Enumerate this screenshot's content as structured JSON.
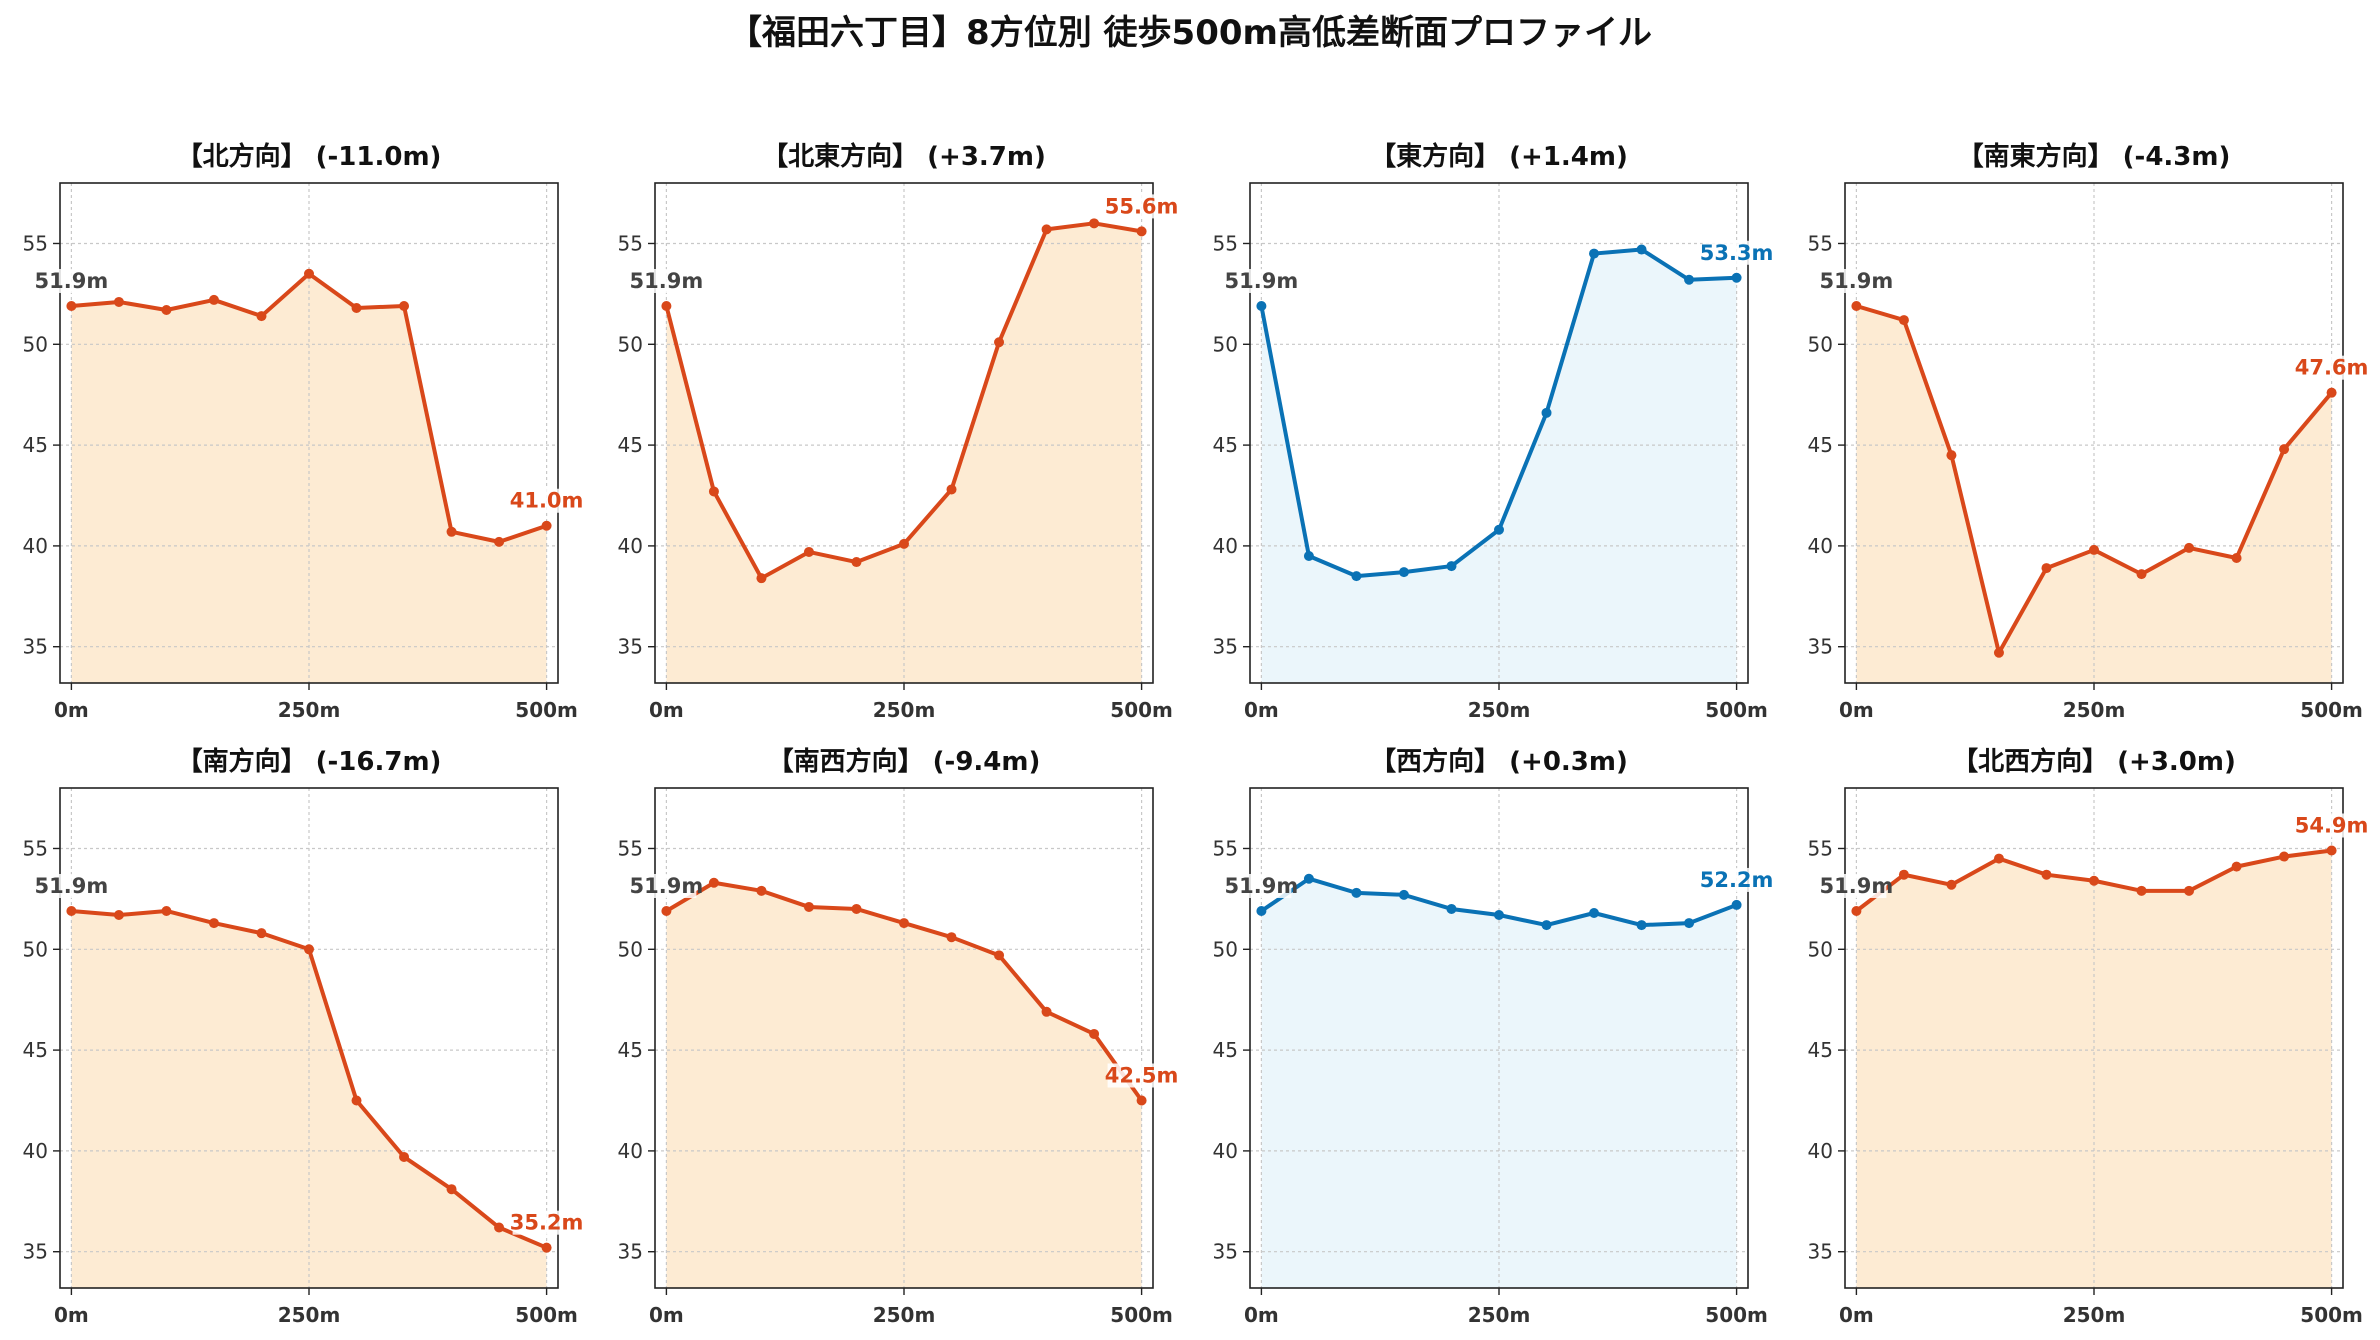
{
  "title": "【福田六丁目】8方位別 徒歩500m高低差断面プロファイル",
  "colors": {
    "down_line": "#d9481a",
    "down_fill": "#fdebd3",
    "up_line": "#0a72b5",
    "up_fill": "#ebf6fb",
    "grid": "#c8c8c8",
    "axis": "#222222"
  },
  "chart_data": [
    {
      "type": "area",
      "title": "【北方向】 (-11.0m)",
      "color_scheme": "down",
      "x": [
        0,
        50,
        100,
        150,
        200,
        250,
        300,
        350,
        400,
        450,
        500
      ],
      "values": [
        51.9,
        52.1,
        51.7,
        52.2,
        51.4,
        53.5,
        51.8,
        51.9,
        40.7,
        40.2,
        41.0
      ],
      "start_label": "51.9m",
      "end_label": "41.0m",
      "xticks": [
        "0m",
        "250m",
        "500m"
      ],
      "yticks": [
        "35",
        "40",
        "45",
        "50",
        "55"
      ],
      "xlim": [
        -12,
        512
      ],
      "ylim": [
        33.2,
        58
      ],
      "grid": true
    },
    {
      "type": "area",
      "title": "【北東方向】 (+3.7m)",
      "color_scheme": "down",
      "x": [
        0,
        50,
        100,
        150,
        200,
        250,
        300,
        350,
        400,
        450,
        500
      ],
      "values": [
        51.9,
        42.7,
        38.4,
        39.7,
        39.2,
        40.1,
        42.8,
        50.1,
        55.7,
        56.0,
        55.6
      ],
      "start_label": "51.9m",
      "end_label": "55.6m",
      "xticks": [
        "0m",
        "250m",
        "500m"
      ],
      "yticks": [
        "35",
        "40",
        "45",
        "50",
        "55"
      ],
      "xlim": [
        -12,
        512
      ],
      "ylim": [
        33.2,
        58
      ],
      "grid": true
    },
    {
      "type": "area",
      "title": "【東方向】 (+1.4m)",
      "color_scheme": "up",
      "x": [
        0,
        50,
        100,
        150,
        200,
        250,
        300,
        350,
        400,
        450,
        500
      ],
      "values": [
        51.9,
        39.5,
        38.5,
        38.7,
        39.0,
        40.8,
        46.6,
        54.5,
        54.7,
        53.2,
        53.3
      ],
      "start_label": "51.9m",
      "end_label": "53.3m",
      "xticks": [
        "0m",
        "250m",
        "500m"
      ],
      "yticks": [
        "35",
        "40",
        "45",
        "50",
        "55"
      ],
      "xlim": [
        -12,
        512
      ],
      "ylim": [
        33.2,
        58
      ],
      "grid": true
    },
    {
      "type": "area",
      "title": "【南東方向】 (-4.3m)",
      "color_scheme": "down",
      "x": [
        0,
        50,
        100,
        150,
        200,
        250,
        300,
        350,
        400,
        450,
        500
      ],
      "values": [
        51.9,
        51.2,
        44.5,
        34.7,
        38.9,
        39.8,
        38.6,
        39.9,
        39.4,
        44.8,
        47.6
      ],
      "start_label": "51.9m",
      "end_label": "47.6m",
      "xticks": [
        "0m",
        "250m",
        "500m"
      ],
      "yticks": [
        "35",
        "40",
        "45",
        "50",
        "55"
      ],
      "xlim": [
        -12,
        512
      ],
      "ylim": [
        33.2,
        58
      ],
      "grid": true
    },
    {
      "type": "area",
      "title": "【南方向】 (-16.7m)",
      "color_scheme": "down",
      "x": [
        0,
        50,
        100,
        150,
        200,
        250,
        300,
        350,
        400,
        450,
        500
      ],
      "values": [
        51.9,
        51.7,
        51.9,
        51.3,
        50.8,
        50.0,
        42.5,
        39.7,
        38.1,
        36.2,
        35.2
      ],
      "start_label": "51.9m",
      "end_label": "35.2m",
      "xticks": [
        "0m",
        "250m",
        "500m"
      ],
      "yticks": [
        "35",
        "40",
        "45",
        "50",
        "55"
      ],
      "xlim": [
        -12,
        512
      ],
      "ylim": [
        33.2,
        58
      ],
      "grid": true
    },
    {
      "type": "area",
      "title": "【南西方向】 (-9.4m)",
      "color_scheme": "down",
      "x": [
        0,
        50,
        100,
        150,
        200,
        250,
        300,
        350,
        400,
        450,
        500
      ],
      "values": [
        51.9,
        53.3,
        52.9,
        52.1,
        52.0,
        51.3,
        50.6,
        49.7,
        46.9,
        45.8,
        42.5
      ],
      "start_label": "51.9m",
      "end_label": "42.5m",
      "xticks": [
        "0m",
        "250m",
        "500m"
      ],
      "yticks": [
        "35",
        "40",
        "45",
        "50",
        "55"
      ],
      "xlim": [
        -12,
        512
      ],
      "ylim": [
        33.2,
        58
      ],
      "grid": true
    },
    {
      "type": "area",
      "title": "【西方向】 (+0.3m)",
      "color_scheme": "up",
      "x": [
        0,
        50,
        100,
        150,
        200,
        250,
        300,
        350,
        400,
        450,
        500
      ],
      "values": [
        51.9,
        53.5,
        52.8,
        52.7,
        52.0,
        51.7,
        51.2,
        51.8,
        51.2,
        51.3,
        52.2
      ],
      "start_label": "51.9m",
      "end_label": "52.2m",
      "xticks": [
        "0m",
        "250m",
        "500m"
      ],
      "yticks": [
        "35",
        "40",
        "45",
        "50",
        "55"
      ],
      "xlim": [
        -12,
        512
      ],
      "ylim": [
        33.2,
        58
      ],
      "grid": true
    },
    {
      "type": "area",
      "title": "【北西方向】 (+3.0m)",
      "color_scheme": "down",
      "x": [
        0,
        50,
        100,
        150,
        200,
        250,
        300,
        350,
        400,
        450,
        500
      ],
      "values": [
        51.9,
        53.7,
        53.2,
        54.5,
        53.7,
        53.4,
        52.9,
        52.9,
        54.1,
        54.6,
        54.9
      ],
      "start_label": "51.9m",
      "end_label": "54.9m",
      "xticks": [
        "0m",
        "250m",
        "500m"
      ],
      "yticks": [
        "35",
        "40",
        "45",
        "50",
        "55"
      ],
      "xlim": [
        -12,
        512
      ],
      "ylim": [
        33.2,
        58
      ],
      "grid": true
    }
  ]
}
